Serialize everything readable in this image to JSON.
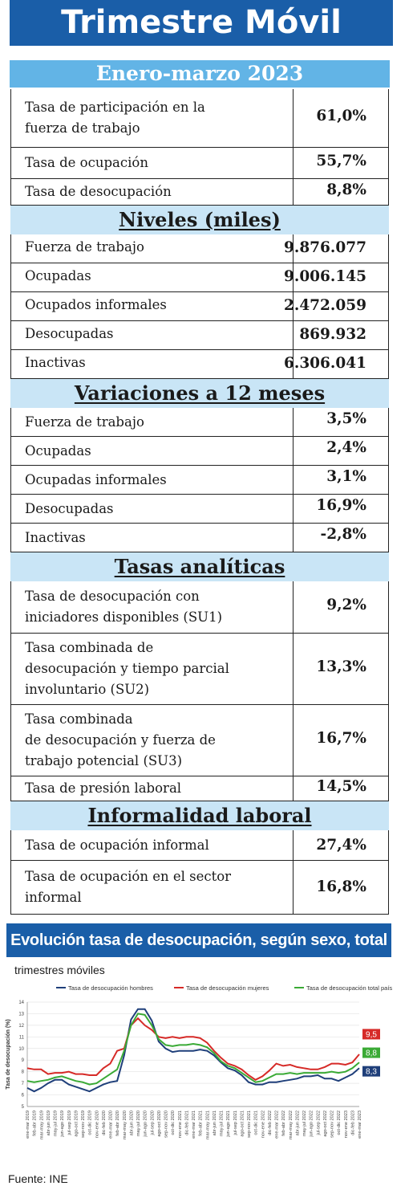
{
  "title": "Trimestre Móvil",
  "period": "Enero-marzo 2023",
  "top_rows": [
    {
      "label": "Tasa de participación en la\nfuerza de trabajo",
      "value": "61,0%"
    },
    {
      "label": "Tasa de ocupación",
      "value": "55,7%"
    },
    {
      "label": "Tasa de desocupación",
      "value": "8,8%"
    }
  ],
  "niveles": {
    "title": "Niveles (miles)",
    "rows": [
      {
        "label": "Fuerza de trabajo",
        "value": "9.876.077"
      },
      {
        "label": "Ocupadas",
        "value": "9.006.145"
      },
      {
        "label": "Ocupados informales",
        "value": "2.472.059"
      },
      {
        "label": "Desocupadas",
        "value": "869.932"
      },
      {
        "label": "Inactivas",
        "value": "6.306.041"
      }
    ]
  },
  "variaciones": {
    "title": "Variaciones a 12 meses",
    "rows": [
      {
        "label": "Fuerza de trabajo",
        "value": "3,5%"
      },
      {
        "label": "Ocupadas",
        "value": "2,4%"
      },
      {
        "label": "Ocupadas informales",
        "value": "3,1%"
      },
      {
        "label": "Desocupadas",
        "value": "16,9%"
      },
      {
        "label": "Inactivas",
        "value": "-2,8%"
      }
    ]
  },
  "tasas": {
    "title": "Tasas analíticas",
    "rows": [
      {
        "label": "Tasa de desocupación con\niniciadores disponibles (SU1)",
        "value": "9,2%"
      },
      {
        "label": "Tasa combinada de\ndesocupación y tiempo parcial\ninvoluntario (SU2)",
        "value": "13,3%"
      },
      {
        "label": "Tasa combinada\nde desocupación y fuerza de\ntrabajo potencial (SU3)",
        "value": "16,7%"
      },
      {
        "label": "Tasa de presión laboral",
        "value": "14,5%"
      }
    ]
  },
  "informalidad": {
    "title": "Informalidad laboral",
    "rows": [
      {
        "label": "Tasa de ocupación informal",
        "value": "27,4%"
      },
      {
        "label": "Tasa de ocupación en el sector\ninformal",
        "value": "16,8%"
      }
    ]
  },
  "chart_title": "Evolución tasa de desocupación, según sexo, total país",
  "chart_subtitle": "trimestres móviles",
  "source": "Fuente: INE",
  "chart_data": {
    "type": "line",
    "title": "Evolución tasa de desocupación, según sexo, total país",
    "ylabel": "Tasa de desocupación (%)",
    "ylim": [
      5,
      14
    ],
    "yticks": [
      5,
      6,
      7,
      8,
      9,
      10,
      11,
      12,
      13,
      14
    ],
    "legend_position": "top",
    "x": [
      "ene-mar 2019",
      "feb-abr 2019",
      "mar-may 2019",
      "abr-jun 2019",
      "may-jul 2019",
      "jun-ago 2019",
      "jul-sep 2019",
      "ago-oct 2019",
      "sep-nov 2019",
      "oct-dic 2019",
      "nov-ene 2020",
      "dic-feb 2020",
      "ene-mar 2020",
      "feb-abr 2020",
      "mar-may 2020",
      "abr-jun 2020",
      "may-jul 2020",
      "jun-ago 2020",
      "jul-sep 2020",
      "ago-oct 2020",
      "sep-nov 2020",
      "oct-dic 2020",
      "nov-ene 2021",
      "dic-feb 2021",
      "ene-mar 2021",
      "feb-abr 2021",
      "mar-may 2021",
      "abr-jun 2021",
      "may-jul 2021",
      "jun-ago 2021",
      "jul-sep 2021",
      "ago-oct 2021",
      "sep-nov 2021",
      "oct-dic 2021",
      "nov-ene 2022",
      "dic-feb 2022",
      "ene-mar 2022",
      "feb-abr 2022",
      "mar-may 2022",
      "abr-jun 2022",
      "may-jul 2022",
      "jun-ago 2022",
      "jul-sep 2022",
      "ago-oct 2022",
      "sep-nov 2022",
      "oct-dic 2022",
      "nov-ene 2023",
      "dic-feb 2023",
      "ene-mar 2023"
    ],
    "series": [
      {
        "name": "Tasa de desocupación hombres",
        "color": "#1f3f7a",
        "values": [
          6.6,
          6.3,
          6.6,
          7.0,
          7.3,
          7.3,
          6.9,
          6.7,
          6.5,
          6.3,
          6.6,
          6.9,
          7.1,
          7.2,
          9.4,
          12.5,
          13.4,
          13.4,
          12.4,
          10.6,
          10.0,
          9.7,
          9.8,
          9.8,
          9.8,
          9.9,
          9.8,
          9.4,
          8.8,
          8.3,
          8.1,
          7.7,
          7.1,
          6.9,
          6.9,
          7.1,
          7.1,
          7.2,
          7.3,
          7.4,
          7.6,
          7.6,
          7.7,
          7.4,
          7.4,
          7.2,
          7.5,
          7.8,
          8.3
        ]
      },
      {
        "name": "Tasa de desocupación mujeres",
        "color": "#d62a27",
        "values": [
          8.3,
          8.2,
          8.2,
          7.8,
          7.9,
          7.9,
          8.0,
          7.8,
          7.8,
          7.7,
          7.7,
          8.3,
          8.7,
          9.8,
          10.0,
          12.0,
          12.6,
          12.0,
          11.6,
          11.0,
          10.9,
          11.0,
          10.9,
          11.0,
          11.0,
          10.9,
          10.5,
          9.8,
          9.2,
          8.7,
          8.5,
          8.2,
          7.7,
          7.3,
          7.6,
          8.1,
          8.7,
          8.5,
          8.6,
          8.4,
          8.3,
          8.2,
          8.2,
          8.4,
          8.7,
          8.7,
          8.6,
          8.8,
          9.5
        ]
      },
      {
        "name": "Tasa de desocupación total país",
        "color": "#3aaa35",
        "values": [
          7.2,
          7.1,
          7.2,
          7.3,
          7.5,
          7.6,
          7.4,
          7.2,
          7.1,
          6.9,
          7.0,
          7.4,
          7.8,
          8.2,
          9.8,
          12.0,
          13.0,
          12.9,
          12.0,
          10.8,
          10.3,
          10.2,
          10.3,
          10.3,
          10.4,
          10.3,
          10.1,
          9.6,
          8.9,
          8.5,
          8.3,
          7.9,
          7.5,
          7.1,
          7.2,
          7.5,
          7.8,
          7.8,
          7.9,
          7.8,
          7.9,
          7.9,
          7.9,
          7.9,
          8.0,
          7.9,
          8.0,
          8.3,
          8.8
        ]
      }
    ],
    "end_labels": [
      {
        "text": "9,5",
        "color": "#d62a27"
      },
      {
        "text": "8,8",
        "color": "#3aaa35"
      },
      {
        "text": "8,3",
        "color": "#1f3f7a"
      }
    ]
  }
}
